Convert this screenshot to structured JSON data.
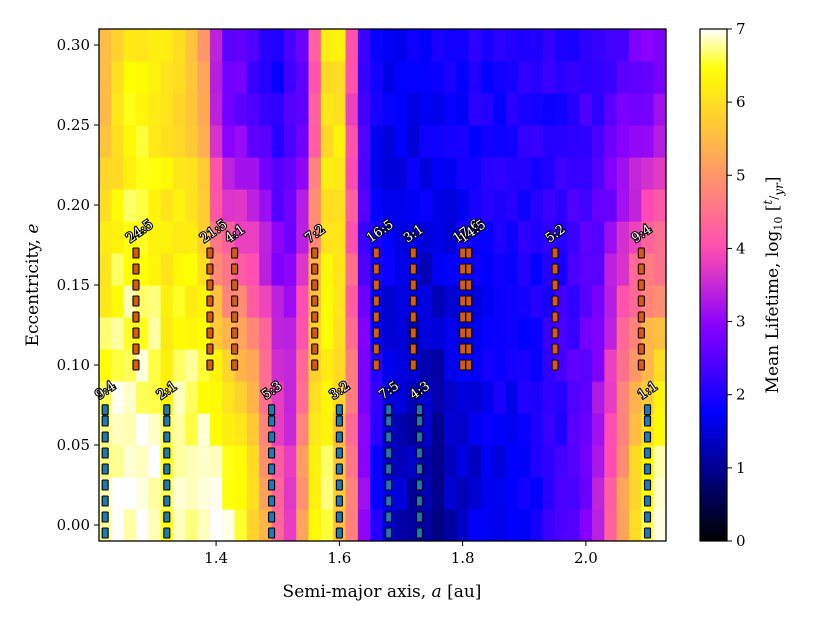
{
  "chart_data": {
    "type": "heatmap",
    "xlabel_text": "Semi-major axis,",
    "xlabel_var": "a",
    "xlabel_unit": "[au]",
    "ylabel_text": "Eccentricity,",
    "ylabel_var": "e",
    "colorbar_label": "Mean Lifetime, log",
    "colorbar_sub": "10",
    "colorbar_frac_num": "t",
    "colorbar_frac_den": "yr",
    "xlim": [
      1.21,
      2.13
    ],
    "ylim": [
      -0.01,
      0.31
    ],
    "x_ticks": [
      1.4,
      1.6,
      1.8,
      2.0
    ],
    "x_tick_labels": [
      "1.4",
      "1.6",
      "1.8",
      "2.0"
    ],
    "y_ticks": [
      0.0,
      0.05,
      0.1,
      0.15,
      0.2,
      0.25,
      0.3
    ],
    "y_tick_labels": [
      "0.00",
      "0.05",
      "0.10",
      "0.15",
      "0.20",
      "0.25",
      "0.30"
    ],
    "colorbar_range": [
      0,
      7
    ],
    "colorbar_ticks": [
      0,
      1,
      2,
      3,
      4,
      5,
      6,
      7
    ],
    "colorbar_tick_labels": [
      "0",
      "1",
      "2",
      "3",
      "4",
      "5",
      "6",
      "7"
    ],
    "colormap": "gnuplot2",
    "grid": {
      "x_start": 1.21,
      "x_step": 0.02,
      "nx": 46,
      "y_start": -0.01,
      "y_step": 0.02,
      "ny": 16,
      "profile_low_e": [
        [
          1.21,
          7.0
        ],
        [
          1.24,
          7.0
        ],
        [
          1.27,
          7.0
        ],
        [
          1.3,
          6.9
        ],
        [
          1.32,
          6.5
        ],
        [
          1.34,
          6.8
        ],
        [
          1.37,
          6.9
        ],
        [
          1.4,
          7.0
        ],
        [
          1.43,
          6.6
        ],
        [
          1.46,
          6.0
        ],
        [
          1.48,
          5.2
        ],
        [
          1.5,
          4.2
        ],
        [
          1.52,
          3.8
        ],
        [
          1.54,
          5.0
        ],
        [
          1.56,
          6.4
        ],
        [
          1.58,
          6.5
        ],
        [
          1.6,
          5.6
        ],
        [
          1.62,
          4.6
        ],
        [
          1.64,
          3.0
        ],
        [
          1.66,
          2.0
        ],
        [
          1.68,
          1.5
        ],
        [
          1.7,
          1.3
        ],
        [
          1.73,
          1.1
        ],
        [
          1.76,
          1.1
        ],
        [
          1.8,
          1.4
        ],
        [
          1.84,
          1.6
        ],
        [
          1.88,
          1.8
        ],
        [
          1.92,
          1.9
        ],
        [
          1.96,
          2.2
        ],
        [
          2.0,
          2.8
        ],
        [
          2.03,
          3.6
        ],
        [
          2.05,
          4.6
        ],
        [
          2.07,
          5.8
        ],
        [
          2.09,
          6.4
        ],
        [
          2.11,
          6.7
        ],
        [
          2.13,
          6.9
        ]
      ],
      "profile_high_e": [
        [
          1.21,
          5.2
        ],
        [
          1.23,
          5.8
        ],
        [
          1.25,
          6.2
        ],
        [
          1.27,
          6.3
        ],
        [
          1.3,
          6.2
        ],
        [
          1.33,
          6.0
        ],
        [
          1.36,
          5.8
        ],
        [
          1.38,
          5.2
        ],
        [
          1.4,
          3.4
        ],
        [
          1.42,
          2.7
        ],
        [
          1.45,
          2.5
        ],
        [
          1.48,
          2.2
        ],
        [
          1.5,
          2.0
        ],
        [
          1.52,
          2.2
        ],
        [
          1.54,
          2.6
        ],
        [
          1.56,
          4.2
        ],
        [
          1.58,
          6.0
        ],
        [
          1.6,
          6.2
        ],
        [
          1.62,
          4.0
        ],
        [
          1.64,
          2.2
        ],
        [
          1.66,
          1.8
        ],
        [
          1.7,
          1.7
        ],
        [
          1.76,
          1.8
        ],
        [
          1.82,
          2.0
        ],
        [
          1.9,
          2.0
        ],
        [
          1.96,
          2.1
        ],
        [
          2.0,
          2.2
        ],
        [
          2.06,
          2.5
        ],
        [
          2.1,
          2.8
        ],
        [
          2.13,
          3.0
        ]
      ]
    },
    "resonances_upper": [
      {
        "label": "24:5",
        "a": 1.27
      },
      {
        "label": "21:5",
        "a": 1.39
      },
      {
        "label": "4:1",
        "a": 1.43
      },
      {
        "label": "7:2",
        "a": 1.56
      },
      {
        "label": "16:5",
        "a": 1.66
      },
      {
        "label": "3:1",
        "a": 1.72
      },
      {
        "label": "17:6",
        "a": 1.8
      },
      {
        "label": "14:5",
        "a": 1.81
      },
      {
        "label": "5:2",
        "a": 1.95
      },
      {
        "label": "9:4",
        "a": 2.09
      }
    ],
    "resonances_upper_e": [
      0.1,
      0.11,
      0.12,
      0.13,
      0.14,
      0.15,
      0.16,
      0.17
    ],
    "resonances_lower": [
      {
        "label": "9:4",
        "a": 1.22
      },
      {
        "label": "2:1",
        "a": 1.32
      },
      {
        "label": "5:3",
        "a": 1.49
      },
      {
        "label": "3:2",
        "a": 1.6
      },
      {
        "label": "7:5",
        "a": 1.68
      },
      {
        "label": "4:3",
        "a": 1.73
      },
      {
        "label": "1:1",
        "a": 2.1
      }
    ],
    "resonances_lower_e": [
      -0.005,
      0.005,
      0.015,
      0.025,
      0.035,
      0.045,
      0.055,
      0.065,
      0.072
    ],
    "colors": {
      "upper_marker": "#d55a13",
      "lower_marker": "#1f77b4",
      "marker_edge": "#000000"
    }
  }
}
